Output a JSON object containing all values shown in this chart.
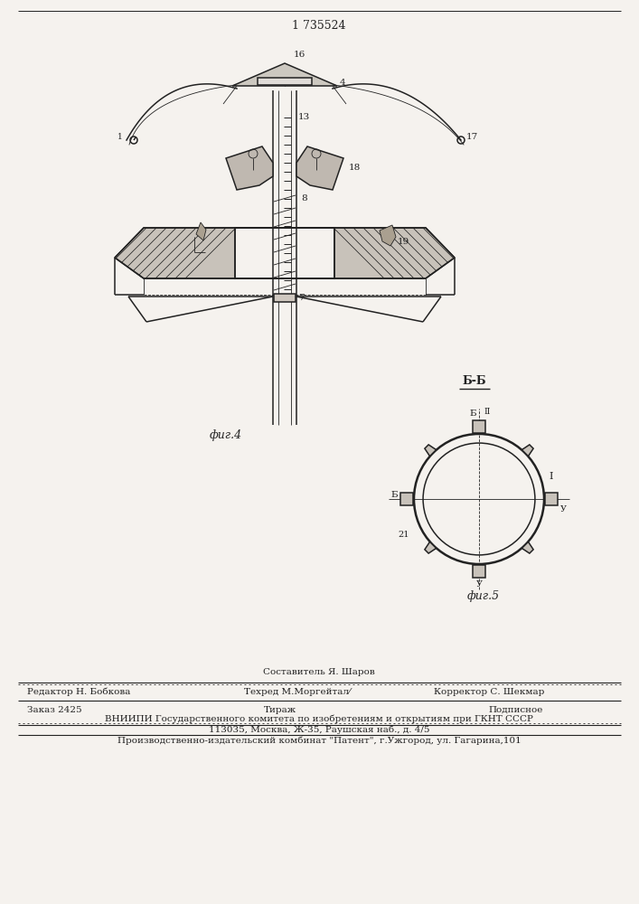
{
  "patent_number": "1 735524",
  "bg_color": "#f5f2ee",
  "line_color": "#222222",
  "fig4_label": "фиг.4",
  "fig5_label": "фиг.5",
  "section_label": "Б-Б",
  "footer_line1_center": "Составитель Я. Шаров",
  "footer_line2_left": "Редактор Н. Бобкова",
  "footer_line2_center": "Техред М.Моргейтал⁄",
  "footer_line2_right": "Корректор С. Шекмар",
  "footer_line3_left": "Заказ 2425",
  "footer_line3_center": "Тираж",
  "footer_line3_right": "Подписное",
  "footer_line4": "ВНИИПИ Государственного комитета по изобретениям и открытиям при ГКНТ СССР",
  "footer_line5": "113035, Москва, Ж-35, Раушская наб., д. 4/5",
  "footer_line6": "Производственно-издательский комбинат \"Патент\", г.Ужгород, ул. Гагарина,101"
}
